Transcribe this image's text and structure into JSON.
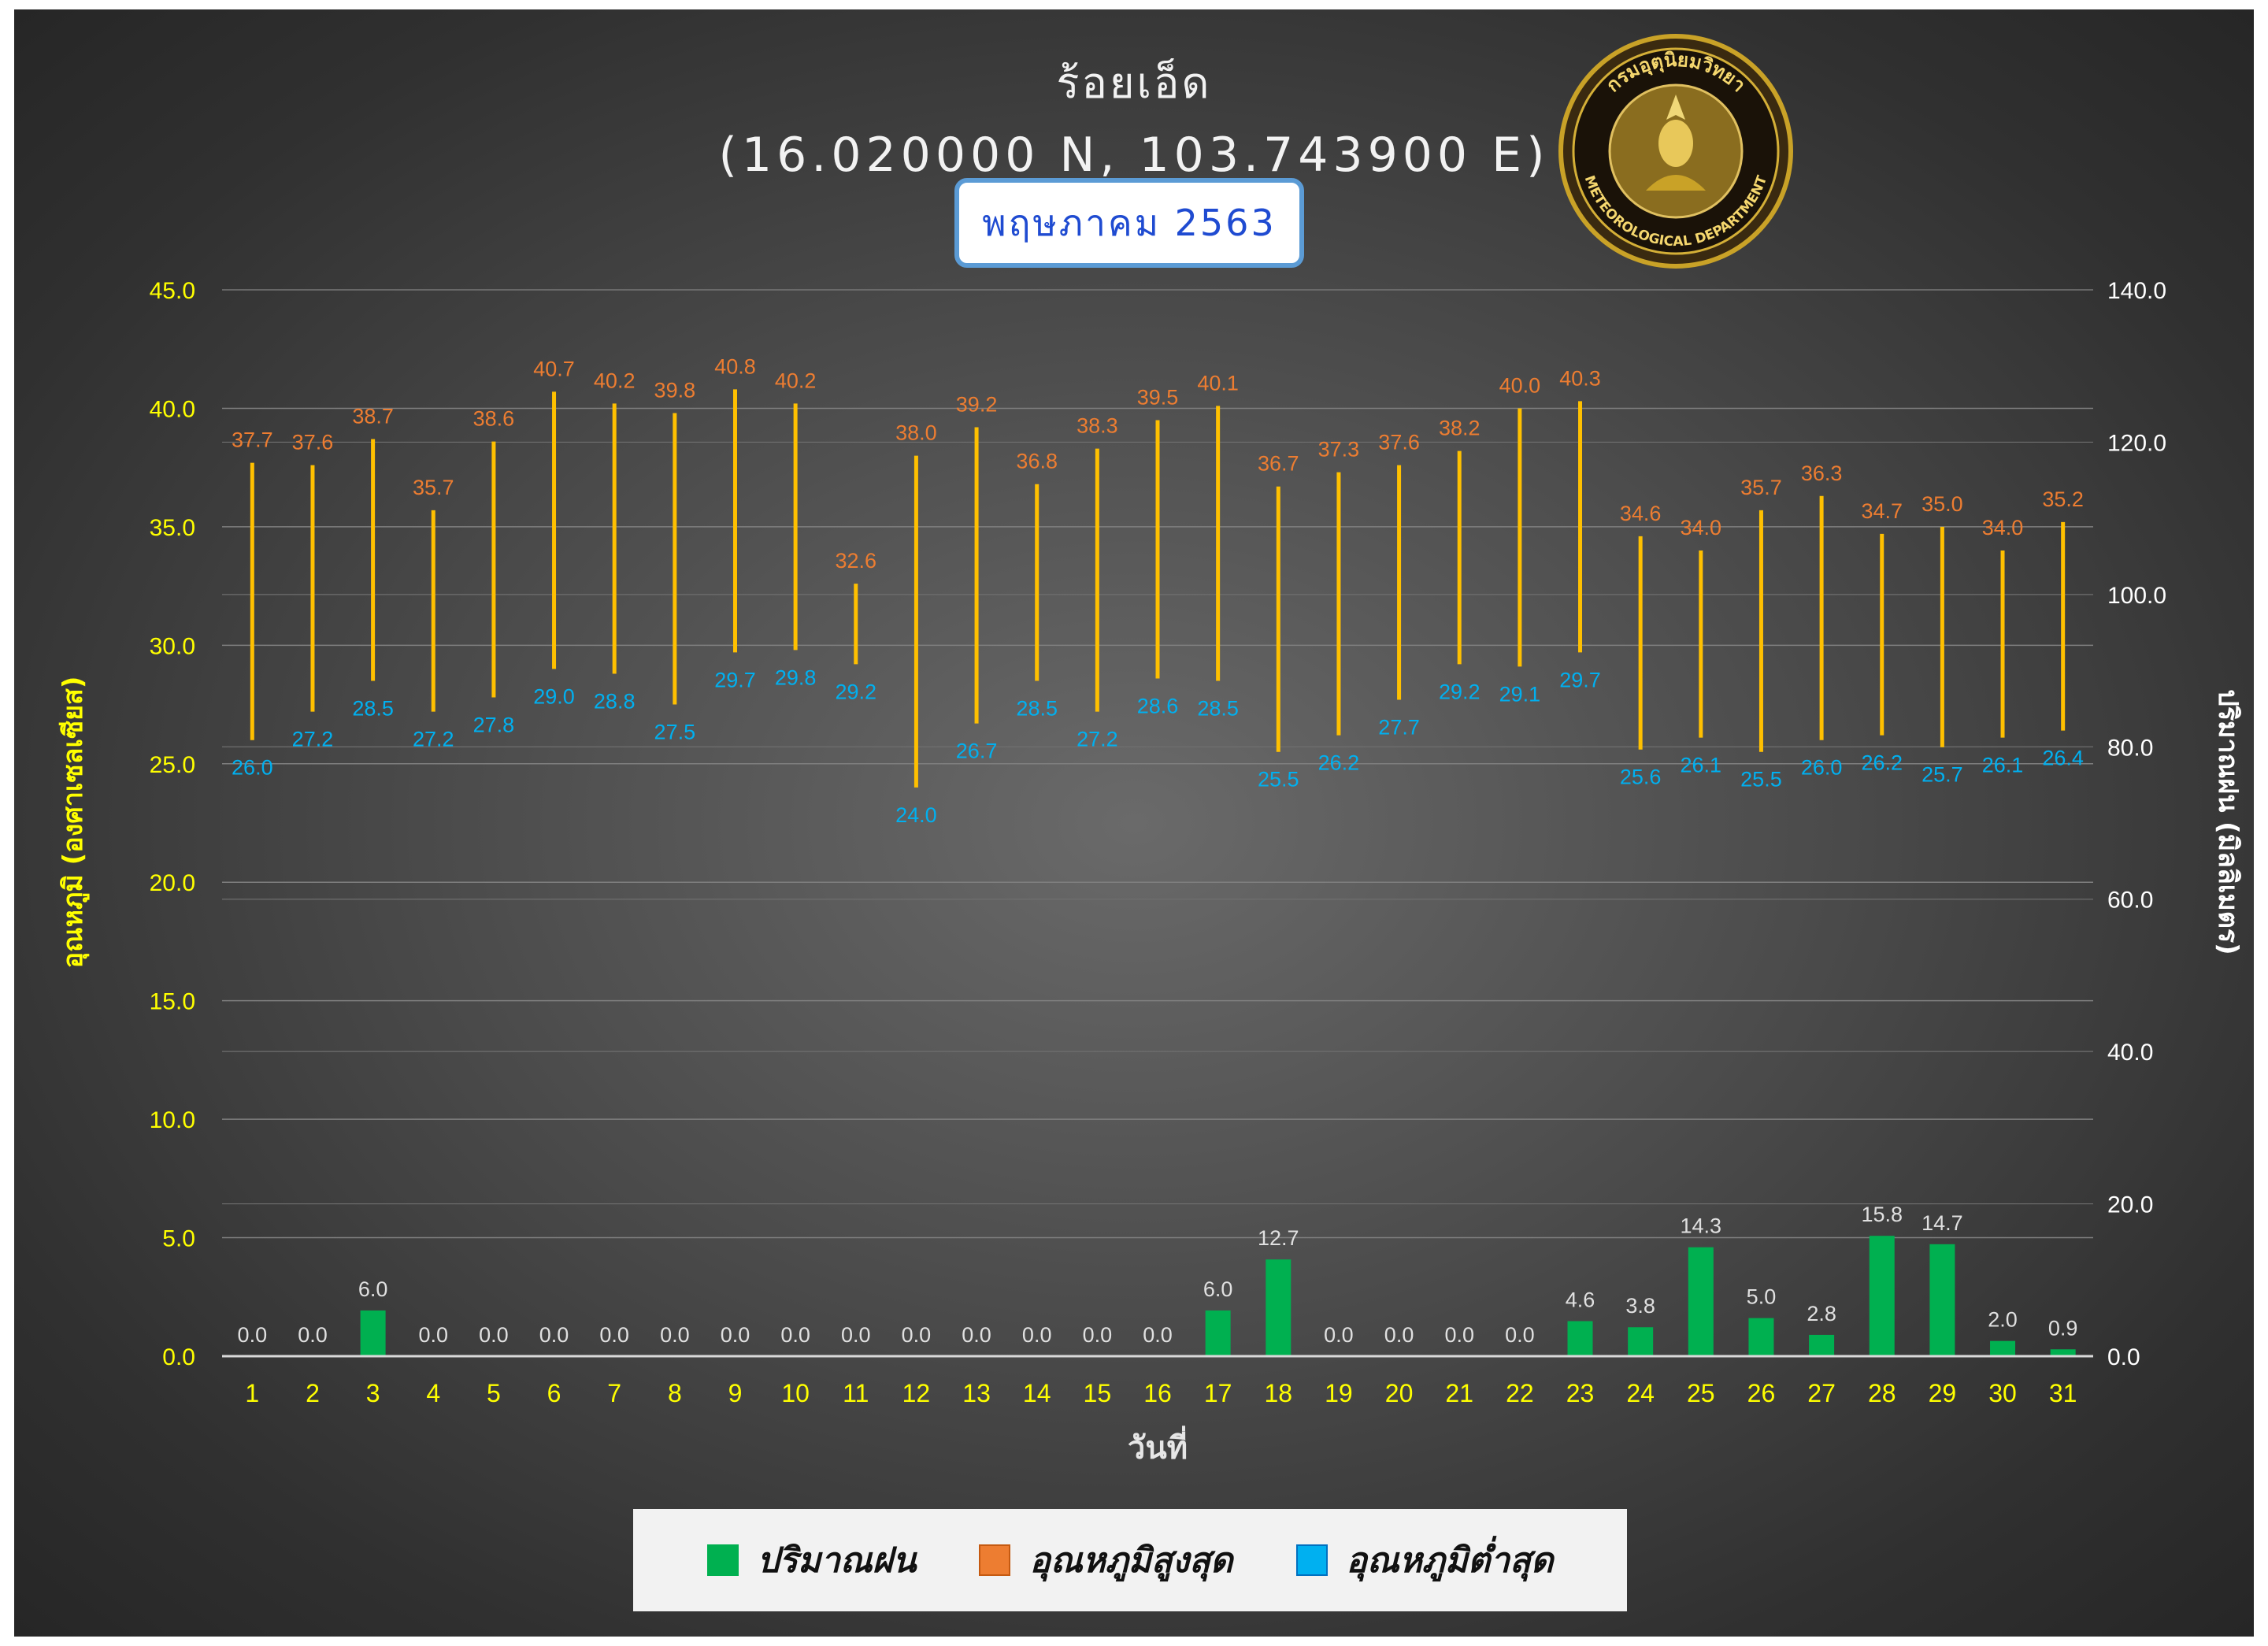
{
  "header": {
    "title": "ร้อยเอ็ด",
    "subtitle": "(16.020000 N, 103.743900 E)",
    "month": "พฤษภาคม 2563",
    "seal_text_top": "กรมอุตุนิยมวิทยา",
    "seal_text_bottom": "METEOROLOGICAL DEPARTMENT"
  },
  "colors": {
    "rain": "#00b050",
    "tmax": "#ed7d31",
    "tmin": "#00b0f0",
    "range_line": "#ffc000",
    "left_axis": "#ffff00",
    "right_axis": "#ffffff",
    "x_axis": "#ffff00"
  },
  "legend": {
    "rain": "ปริมาณฝน",
    "tmax": "อุณหภูมิสูงสุด",
    "tmin": "อุณหภูมิต่ำสุด"
  },
  "chart_data": {
    "type": "bar",
    "xlabel": "วันที่",
    "ylabel_left": "อุณหภูมิ (องศาเซลเซียส)",
    "ylabel_right": "ปริมาณฝน (มิลลิเมตร)",
    "ylim_left": [
      0,
      45
    ],
    "ylim_right": [
      0,
      140
    ],
    "yticks_left": [
      "0.0",
      "5.0",
      "10.0",
      "15.0",
      "20.0",
      "25.0",
      "30.0",
      "35.0",
      "40.0",
      "45.0"
    ],
    "yticks_right": [
      "0.0",
      "20.0",
      "40.0",
      "60.0",
      "80.0",
      "100.0",
      "120.0",
      "140.0"
    ],
    "grid": true,
    "legend_position": "bottom",
    "categories": [
      "1",
      "2",
      "3",
      "4",
      "5",
      "6",
      "7",
      "8",
      "9",
      "10",
      "11",
      "12",
      "13",
      "14",
      "15",
      "16",
      "17",
      "18",
      "19",
      "20",
      "21",
      "22",
      "23",
      "24",
      "25",
      "26",
      "27",
      "28",
      "29",
      "30",
      "31"
    ],
    "series": [
      {
        "name": "ปริมาณฝน",
        "axis": "right",
        "values": [
          0.0,
          0.0,
          6.0,
          0.0,
          0.0,
          0.0,
          0.0,
          0.0,
          0.0,
          0.0,
          0.0,
          0.0,
          0.0,
          0.0,
          0.0,
          0.0,
          6.0,
          12.7,
          0.0,
          0.0,
          0.0,
          0.0,
          4.6,
          3.8,
          14.3,
          5.0,
          2.8,
          15.8,
          14.7,
          2.0,
          0.9
        ]
      },
      {
        "name": "อุณหภูมิสูงสุด",
        "axis": "left",
        "values": [
          37.7,
          37.6,
          38.7,
          35.7,
          38.6,
          40.7,
          40.2,
          39.8,
          40.8,
          40.2,
          32.6,
          38.0,
          39.2,
          36.8,
          38.3,
          39.5,
          40.1,
          36.7,
          37.3,
          37.6,
          38.2,
          40.0,
          40.3,
          34.6,
          34.0,
          35.7,
          36.3,
          34.7,
          35.0,
          34.0,
          35.2
        ]
      },
      {
        "name": "อุณหภูมิต่ำสุด",
        "axis": "left",
        "values": [
          26.0,
          27.2,
          28.5,
          27.2,
          27.8,
          29.0,
          28.8,
          27.5,
          29.7,
          29.8,
          29.2,
          24.0,
          26.7,
          28.5,
          27.2,
          28.6,
          28.5,
          25.5,
          26.2,
          27.7,
          29.2,
          29.1,
          29.7,
          25.6,
          26.1,
          25.5,
          26.0,
          26.2,
          25.7,
          26.1,
          26.4
        ]
      }
    ]
  }
}
